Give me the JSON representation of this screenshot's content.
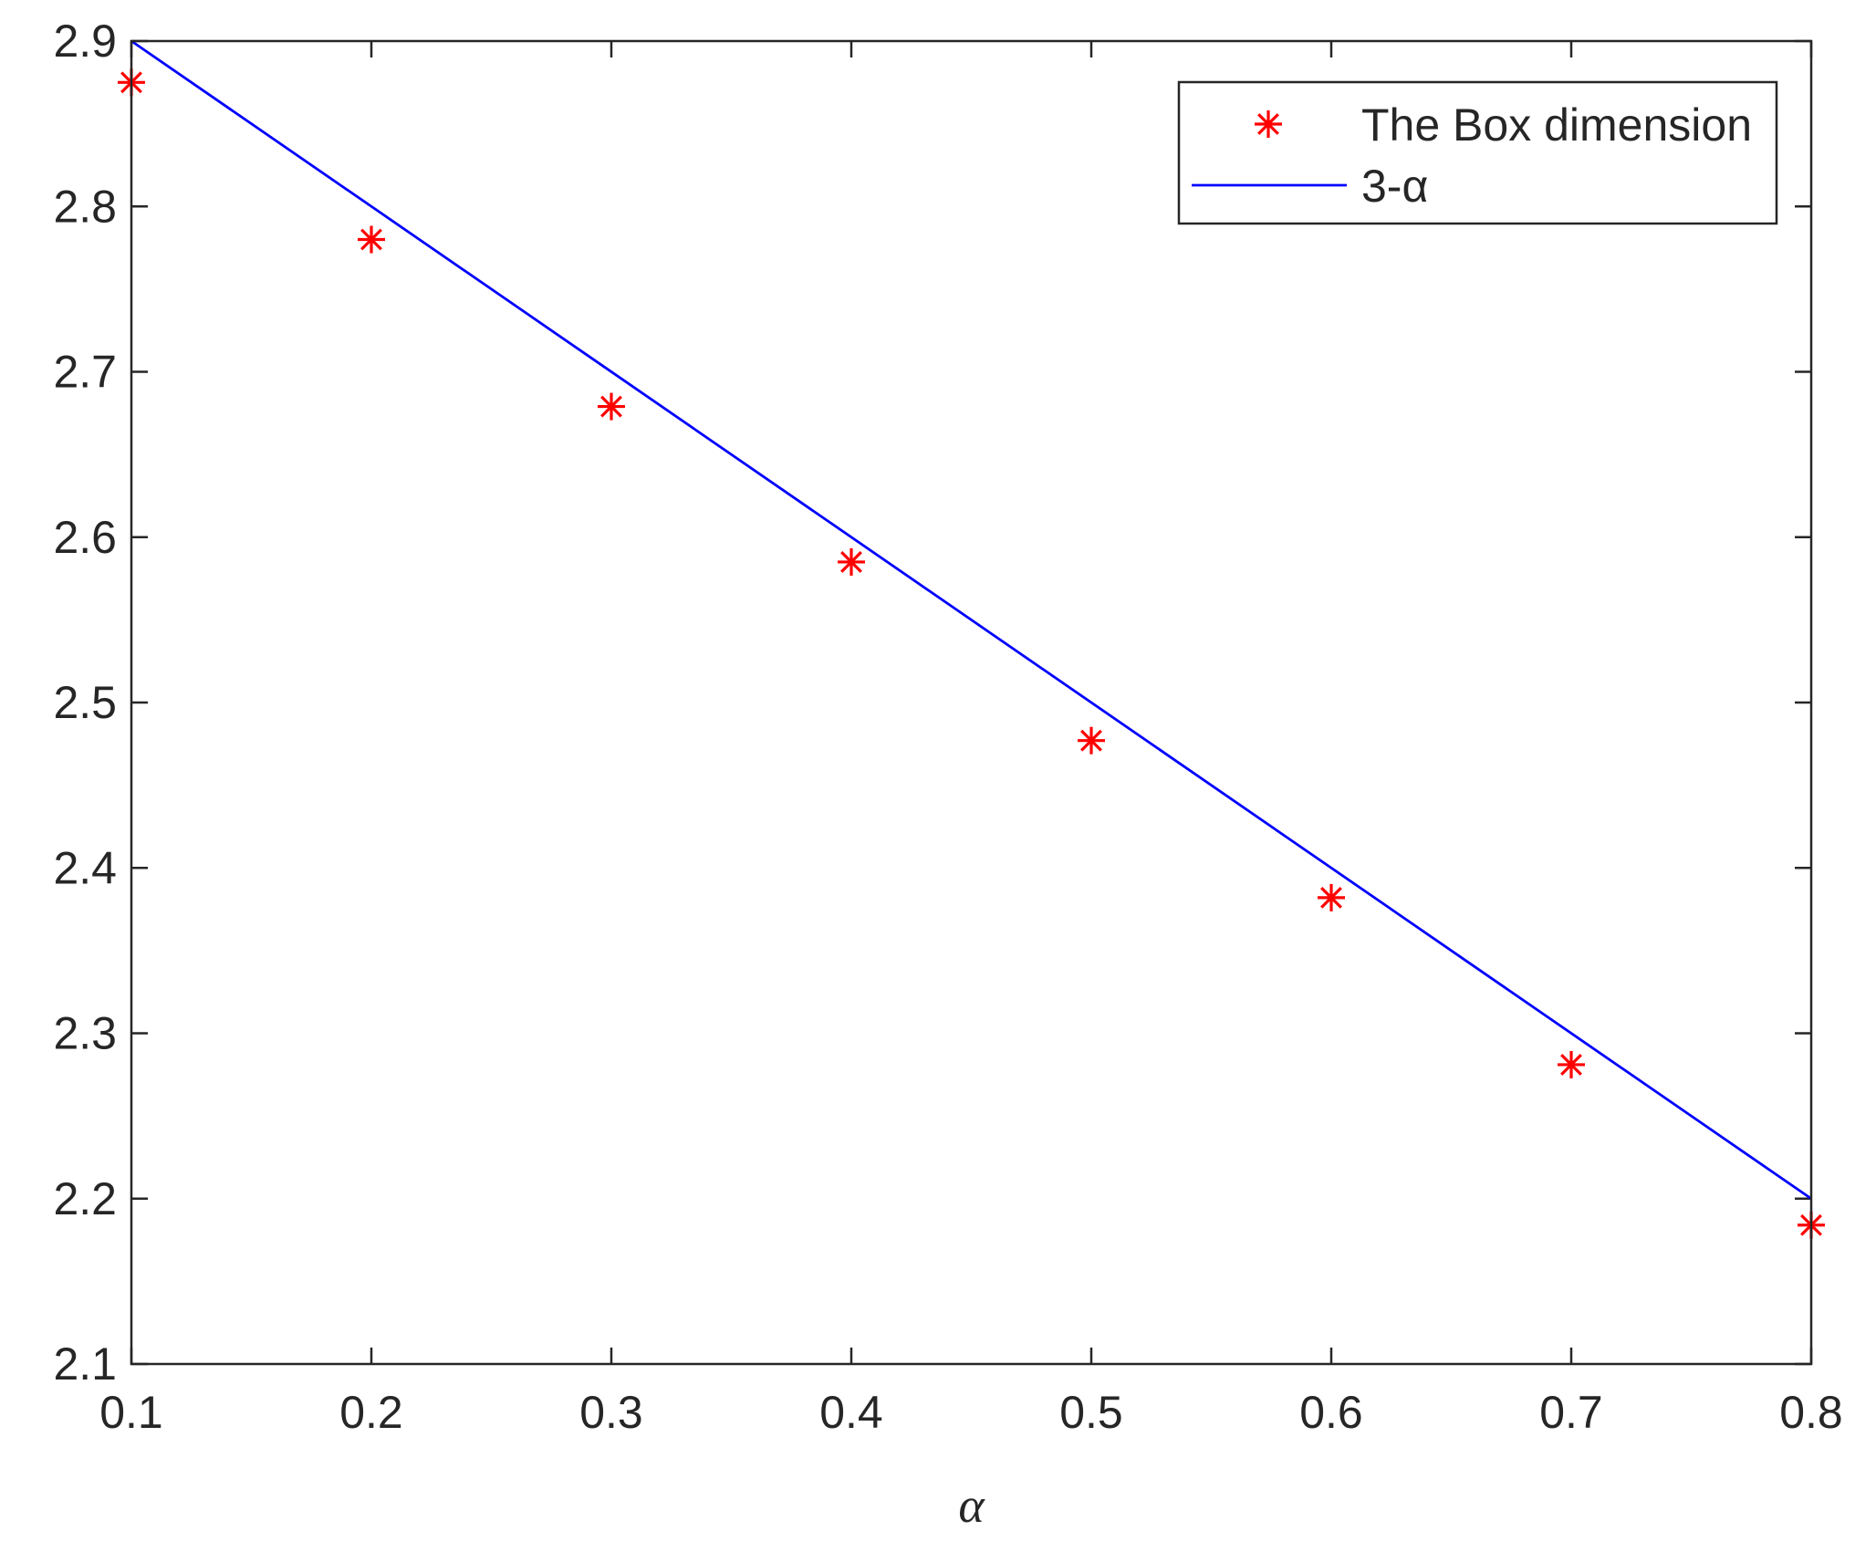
{
  "chart_data": {
    "type": "scatter",
    "xlabel": "α",
    "ylabel": "",
    "title": "",
    "xlim": [
      0.1,
      0.8
    ],
    "ylim": [
      2.1,
      2.9
    ],
    "xticks": [
      "0.1",
      "0.2",
      "0.3",
      "0.4",
      "0.5",
      "0.6",
      "0.7",
      "0.8"
    ],
    "yticks": [
      "2.1",
      "2.2",
      "2.3",
      "2.4",
      "2.5",
      "2.6",
      "2.7",
      "2.8",
      "2.9"
    ],
    "grid": false,
    "legend_position": "top-right",
    "series": [
      {
        "name": "The Box dimension",
        "kind": "scatter",
        "marker": "asterisk",
        "color": "#ff0000",
        "x": [
          0.1,
          0.2,
          0.3,
          0.4,
          0.5,
          0.6,
          0.7,
          0.8
        ],
        "y": [
          2.875,
          2.78,
          2.679,
          2.585,
          2.477,
          2.382,
          2.281,
          2.184
        ]
      },
      {
        "name": "3-α",
        "kind": "line",
        "color": "#0000ff",
        "x": [
          0.1,
          0.8
        ],
        "y": [
          2.9,
          2.2
        ]
      }
    ]
  }
}
